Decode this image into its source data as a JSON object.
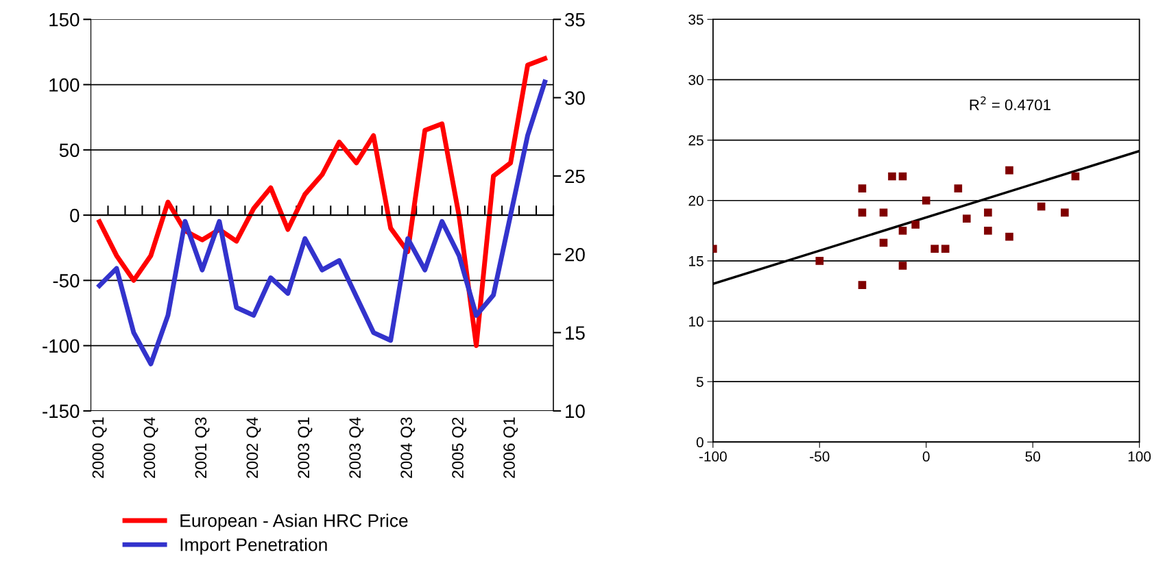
{
  "chart_data": [
    {
      "type": "line",
      "categories": [
        "2000 Q1",
        null,
        null,
        "2000 Q4",
        null,
        null,
        "2001 Q3",
        null,
        null,
        "2002 Q4",
        null,
        null,
        "2003 Q1",
        null,
        null,
        "2003 Q4",
        null,
        null,
        "2004 Q3",
        null,
        null,
        "2005 Q2",
        null,
        null,
        "2006 Q1",
        null,
        null
      ],
      "series": [
        {
          "name": "European - Asian HRC Price",
          "color": "#ff0000",
          "values": [
            -5,
            -31,
            -50,
            -31,
            10,
            -12,
            -19,
            -11,
            -20,
            5,
            21,
            -11,
            16,
            31,
            56,
            40,
            61,
            -10,
            -28,
            65,
            70,
            -1,
            -100,
            30,
            40,
            115,
            120
          ]
        },
        {
          "name": "Import Penetration",
          "color": "#3333cc",
          "axis": "y2",
          "values": [
            18.0,
            19.1,
            15.0,
            13.0,
            16.1,
            22.1,
            19.0,
            22.1,
            16.6,
            16.1,
            18.5,
            17.5,
            21.0,
            19.0,
            19.6,
            17.3,
            15.0,
            14.5,
            21.0,
            19.0,
            22.1,
            19.9,
            16.1,
            17.4,
            22.5,
            27.6,
            31.0
          ]
        }
      ],
      "ylim": [
        -150,
        150
      ],
      "yticks": [
        -150,
        -100,
        -50,
        0,
        50,
        100,
        150
      ],
      "y2lim": [
        10,
        35
      ],
      "y2ticks": [
        10,
        15,
        20,
        25,
        30,
        35
      ],
      "grid": "y",
      "legend": "bottom"
    },
    {
      "type": "scatter",
      "series": [
        {
          "type": "scatter",
          "marker": "square",
          "color": "#800000",
          "x": [
            -100,
            -50,
            -30,
            -30,
            -30,
            -20,
            -20,
            -16,
            -11,
            -11,
            -11,
            -5,
            0,
            4,
            9,
            15,
            19,
            29,
            29,
            39,
            39,
            54,
            65,
            70
          ],
          "values": [
            16.0,
            15.0,
            21.0,
            19.0,
            13.0,
            19.0,
            16.5,
            22.0,
            22.0,
            17.5,
            14.6,
            18.0,
            20.0,
            16.0,
            16.0,
            21.0,
            18.5,
            19.0,
            17.5,
            22.5,
            17.0,
            19.5,
            19.0,
            22.0
          ]
        },
        {
          "type": "line",
          "color": "#000000",
          "x": [
            -100,
            100
          ],
          "values": [
            13.1,
            24.1
          ]
        }
      ],
      "xlim": [
        -100,
        100
      ],
      "xticks": [
        -100,
        -50,
        0,
        50,
        100
      ],
      "ylim": [
        0,
        35
      ],
      "yticks": [
        0,
        5,
        10,
        15,
        20,
        25,
        30,
        35
      ],
      "grid": "y",
      "annotations": [
        "R$^{2}$ = 0.4701"
      ]
    }
  ]
}
